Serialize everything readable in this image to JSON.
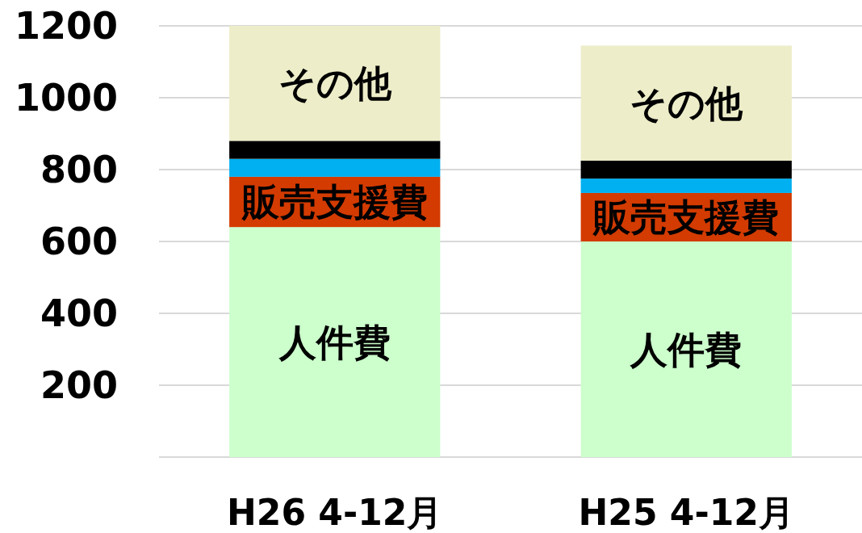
{
  "chart_data": {
    "type": "bar",
    "stacked": true,
    "categories": [
      "H26 4-12月",
      "H25 4-12月"
    ],
    "series": [
      {
        "name": "人件費",
        "color": "#ccffcc",
        "values": [
          640,
          600
        ]
      },
      {
        "name": "販売支援費",
        "color": "#d33b00",
        "values": [
          140,
          135
        ]
      },
      {
        "color": "#00b0f0",
        "values": [
          50,
          40
        ]
      },
      {
        "color": "#000000",
        "values": [
          50,
          50
        ]
      },
      {
        "name": "その他",
        "color": "#ededc9",
        "values": [
          320,
          320
        ]
      }
    ],
    "ylim": [
      0,
      1200
    ],
    "yticks": [
      200,
      400,
      600,
      800,
      1000,
      1200
    ],
    "grid": "y"
  }
}
